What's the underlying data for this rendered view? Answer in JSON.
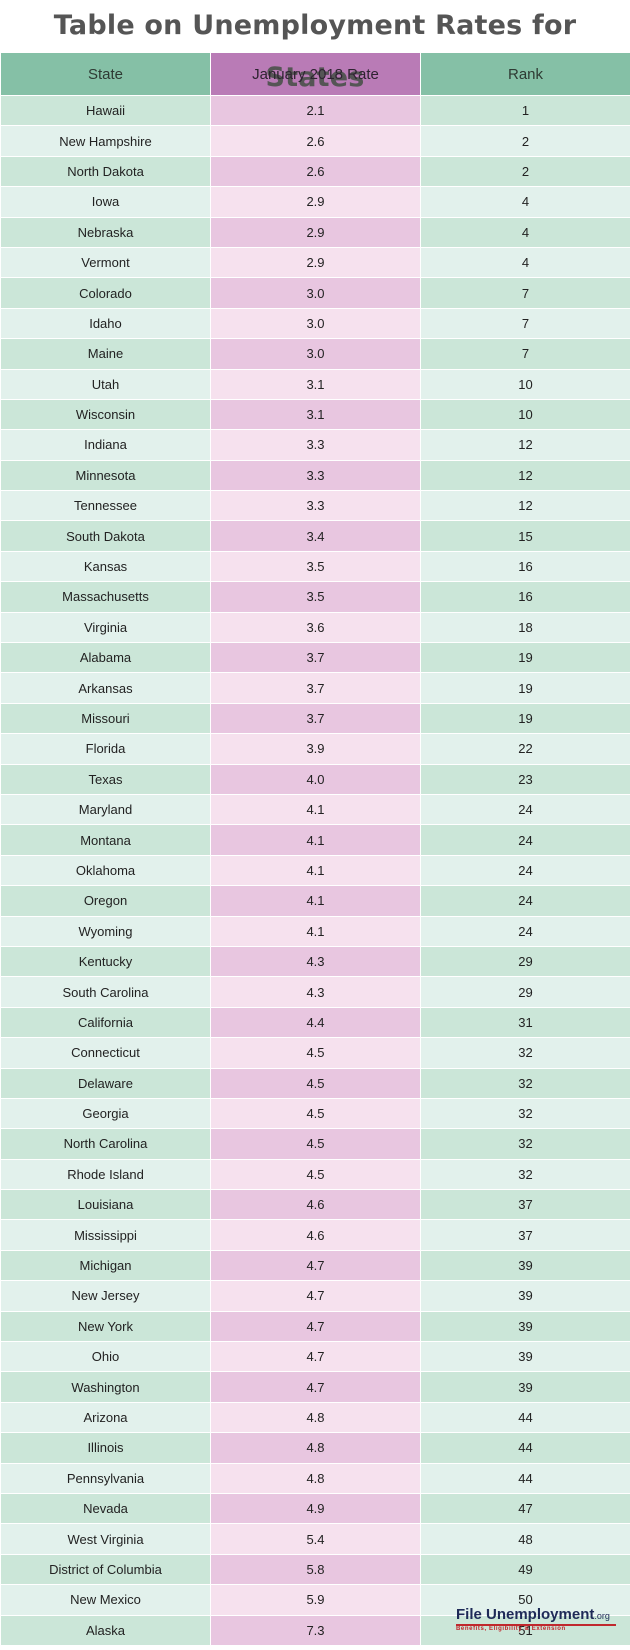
{
  "title": "Table on Unemployment Rates for States",
  "columns": [
    "State",
    "January 2018 Rate",
    "Rank"
  ],
  "rows": [
    [
      "Hawaii",
      "2.1",
      "1"
    ],
    [
      "New Hampshire",
      "2.6",
      "2"
    ],
    [
      "North Dakota",
      "2.6",
      "2"
    ],
    [
      "Iowa",
      "2.9",
      "4"
    ],
    [
      "Nebraska",
      "2.9",
      "4"
    ],
    [
      "Vermont",
      "2.9",
      "4"
    ],
    [
      "Colorado",
      "3.0",
      "7"
    ],
    [
      "Idaho",
      "3.0",
      "7"
    ],
    [
      "Maine",
      "3.0",
      "7"
    ],
    [
      "Utah",
      "3.1",
      "10"
    ],
    [
      "Wisconsin",
      "3.1",
      "10"
    ],
    [
      "Indiana",
      "3.3",
      "12"
    ],
    [
      "Minnesota",
      "3.3",
      "12"
    ],
    [
      "Tennessee",
      "3.3",
      "12"
    ],
    [
      "South Dakota",
      "3.4",
      "15"
    ],
    [
      "Kansas",
      "3.5",
      "16"
    ],
    [
      "Massachusetts",
      "3.5",
      "16"
    ],
    [
      "Virginia",
      "3.6",
      "18"
    ],
    [
      "Alabama",
      "3.7",
      "19"
    ],
    [
      "Arkansas",
      "3.7",
      "19"
    ],
    [
      "Missouri",
      "3.7",
      "19"
    ],
    [
      "Florida",
      "3.9",
      "22"
    ],
    [
      "Texas",
      "4.0",
      "23"
    ],
    [
      "Maryland",
      "4.1",
      "24"
    ],
    [
      "Montana",
      "4.1",
      "24"
    ],
    [
      "Oklahoma",
      "4.1",
      "24"
    ],
    [
      "Oregon",
      "4.1",
      "24"
    ],
    [
      "Wyoming",
      "4.1",
      "24"
    ],
    [
      "Kentucky",
      "4.3",
      "29"
    ],
    [
      "South Carolina",
      "4.3",
      "29"
    ],
    [
      "California",
      "4.4",
      "31"
    ],
    [
      "Connecticut",
      "4.5",
      "32"
    ],
    [
      "Delaware",
      "4.5",
      "32"
    ],
    [
      "Georgia",
      "4.5",
      "32"
    ],
    [
      "North Carolina",
      "4.5",
      "32"
    ],
    [
      "Rhode Island",
      "4.5",
      "32"
    ],
    [
      "Louisiana",
      "4.6",
      "37"
    ],
    [
      "Mississippi",
      "4.6",
      "37"
    ],
    [
      "Michigan",
      "4.7",
      "39"
    ],
    [
      "New Jersey",
      "4.7",
      "39"
    ],
    [
      "New York",
      "4.7",
      "39"
    ],
    [
      "Ohio",
      "4.7",
      "39"
    ],
    [
      "Washington",
      "4.7",
      "39"
    ],
    [
      "Arizona",
      "4.8",
      "44"
    ],
    [
      "Illinois",
      "4.8",
      "44"
    ],
    [
      "Pennsylvania",
      "4.8",
      "44"
    ],
    [
      "Nevada",
      "4.9",
      "47"
    ],
    [
      "West Virginia",
      "5.4",
      "48"
    ],
    [
      "District of Columbia",
      "5.8",
      "49"
    ],
    [
      "New Mexico",
      "5.9",
      "50"
    ],
    [
      "Alaska",
      "7.3",
      "51"
    ]
  ],
  "footer": {
    "logo_text": "File Unemployment",
    "logo_suffix": ".org",
    "tagline": "Benefits, Eligibility & Extension"
  },
  "colors": {
    "green_header": "#85c0a6",
    "purple_header": "#b97bb6",
    "title": "#555555"
  }
}
